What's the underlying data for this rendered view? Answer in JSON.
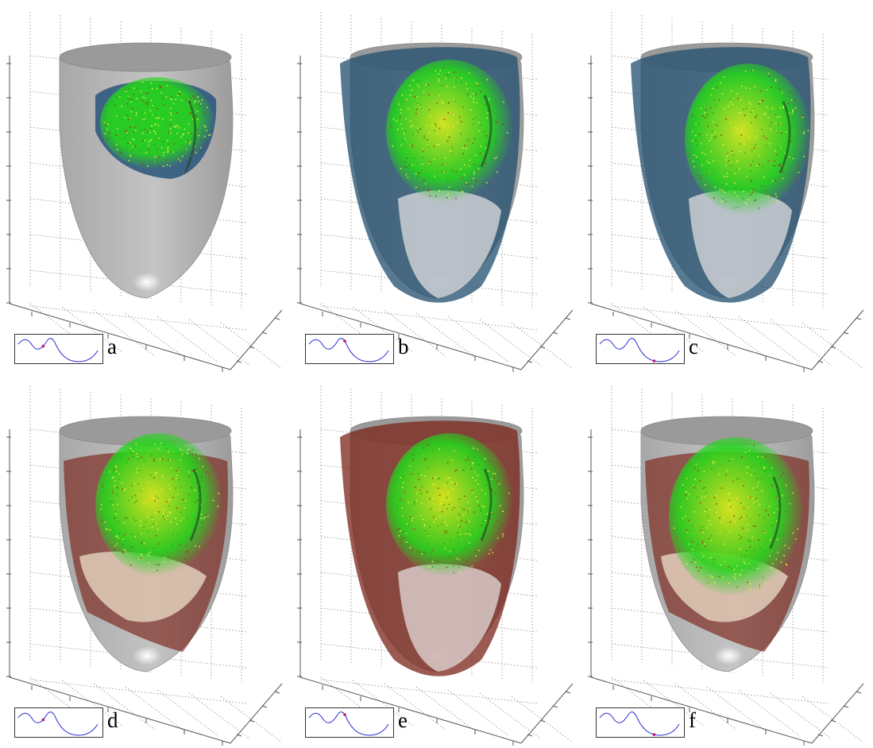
{
  "panels": [
    {
      "label": "a",
      "heart_tint": "#27557a",
      "marker_t": 0.3,
      "extent": "small"
    },
    {
      "label": "b",
      "heart_tint": "#1f4d6e",
      "marker_t": 0.45,
      "extent": "full"
    },
    {
      "label": "c",
      "heart_tint": "#1f4d6e",
      "marker_t": 0.72,
      "extent": "full"
    },
    {
      "label": "d",
      "heart_tint": "#7a2418",
      "marker_t": 0.3,
      "extent": "partial"
    },
    {
      "label": "e",
      "heart_tint": "#7a2418",
      "marker_t": 0.45,
      "extent": "full"
    },
    {
      "label": "f",
      "heart_tint": "#7a2418",
      "marker_t": 0.72,
      "extent": "partial"
    }
  ],
  "colors": {
    "shell": "#b4b4b4",
    "grid": "#8c8c8c",
    "wave": "#2b2bd6",
    "marker": "#c0147a",
    "activation_green": "#26d41c",
    "activation_yellow": "#d8e81e"
  }
}
